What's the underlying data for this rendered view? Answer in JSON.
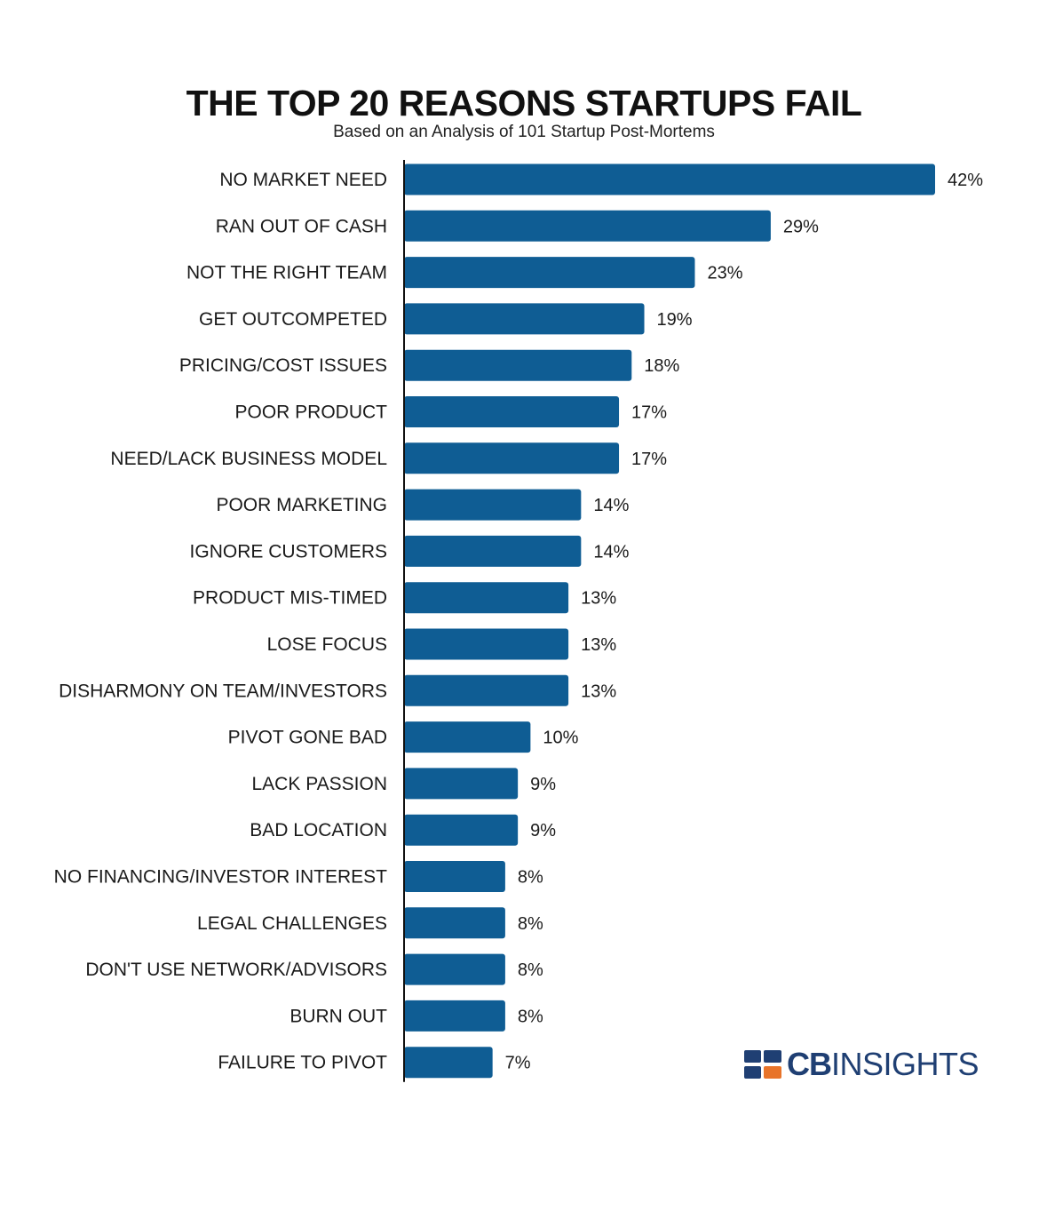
{
  "header": {
    "title": "THE TOP 20 REASONS STARTUPS FAIL",
    "subtitle": "Based on an Analysis of 101 Startup Post-Mortems"
  },
  "logo": {
    "brand_bold": "CB",
    "brand_light": "INSIGHTS",
    "icon": "cb-insights-logo-icon",
    "colors": {
      "navy": "#1f3f73",
      "orange": "#e8742a"
    }
  },
  "colors": {
    "bar": "#0f5d94",
    "axis": "#111111",
    "text": "#1a1a1a"
  },
  "chart_data": {
    "type": "bar",
    "orientation": "horizontal",
    "title": "THE TOP 20 REASONS STARTUPS FAIL",
    "subtitle": "Based on an Analysis of 101 Startup Post-Mortems",
    "categories": [
      "NO MARKET NEED",
      "RAN OUT OF CASH",
      "NOT THE RIGHT TEAM",
      "GET OUTCOMPETED",
      "PRICING/COST ISSUES",
      "POOR PRODUCT",
      "NEED/LACK BUSINESS MODEL",
      "POOR MARKETING",
      "IGNORE CUSTOMERS",
      "PRODUCT MIS-TIMED",
      "LOSE FOCUS",
      "DISHARMONY ON TEAM/INVESTORS",
      "PIVOT GONE BAD",
      "LACK PASSION",
      "BAD LOCATION",
      "NO FINANCING/INVESTOR INTEREST",
      "LEGAL CHALLENGES",
      "DON'T USE NETWORK/ADVISORS",
      "BURN OUT",
      "FAILURE TO PIVOT"
    ],
    "values": [
      42,
      29,
      23,
      19,
      18,
      17,
      17,
      14,
      14,
      13,
      13,
      13,
      10,
      9,
      9,
      8,
      8,
      8,
      8,
      7
    ],
    "value_labels": [
      "42%",
      "29%",
      "23%",
      "19%",
      "18%",
      "17%",
      "17%",
      "14%",
      "14%",
      "13%",
      "13%",
      "13%",
      "10%",
      "9%",
      "9%",
      "8%",
      "8%",
      "8%",
      "8%",
      "7%"
    ],
    "unit": "%",
    "xlim": [
      0,
      42
    ],
    "grid": false,
    "legend": "none",
    "xlabel": "",
    "ylabel": ""
  }
}
